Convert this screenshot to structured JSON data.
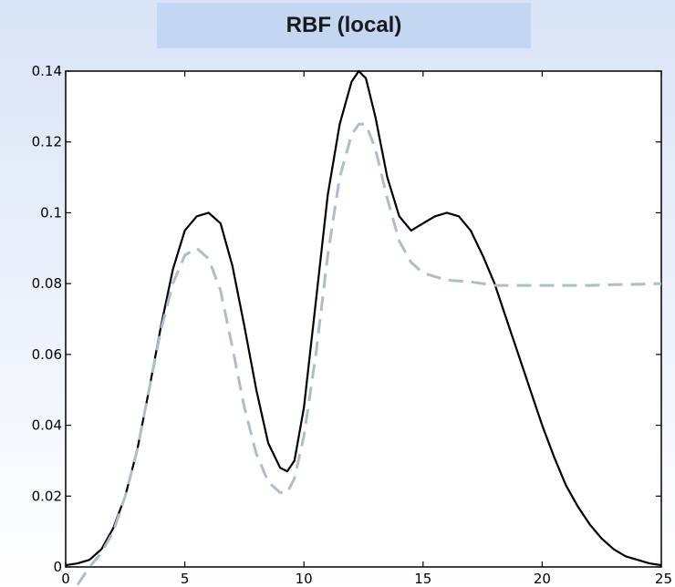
{
  "title": "RBF (local)",
  "chart_data": {
    "type": "line",
    "title": "RBF (local)",
    "xlabel": "",
    "ylabel": "",
    "xlim": [
      0,
      25
    ],
    "ylim": [
      0,
      0.14
    ],
    "grid": false,
    "x_ticks": [
      0,
      5,
      10,
      15,
      20,
      25
    ],
    "x_tick_labels": [
      "0",
      "5",
      "10",
      "15",
      "20",
      "25"
    ],
    "y_ticks": [
      0,
      0.02,
      0.04,
      0.06,
      0.08,
      0.1,
      0.12,
      0.14
    ],
    "y_tick_labels": [
      "0",
      "0.02",
      "0.04",
      "0.06",
      "0.08",
      "0.1",
      "0.12",
      "0.14"
    ],
    "series": [
      {
        "style": "solid",
        "color": "#000000",
        "x": [
          0,
          0.5,
          1,
          1.5,
          2,
          2.5,
          3,
          3.5,
          4,
          4.5,
          5,
          5.5,
          6,
          6.5,
          7,
          7.5,
          8,
          8.5,
          9,
          9.3,
          9.6,
          10,
          10.5,
          11,
          11.5,
          12,
          12.3,
          12.6,
          13,
          13.5,
          14,
          14.5,
          15,
          15.5,
          16,
          16.5,
          17,
          17.5,
          18,
          18.5,
          19,
          19.5,
          20,
          20.5,
          21,
          21.5,
          22,
          22.5,
          23,
          23.5,
          24,
          24.5,
          25
        ],
        "y": [
          0.0005,
          0.001,
          0.002,
          0.005,
          0.011,
          0.02,
          0.033,
          0.05,
          0.068,
          0.084,
          0.095,
          0.099,
          0.1,
          0.097,
          0.085,
          0.068,
          0.05,
          0.035,
          0.028,
          0.027,
          0.03,
          0.045,
          0.075,
          0.105,
          0.125,
          0.137,
          0.14,
          0.138,
          0.127,
          0.11,
          0.099,
          0.095,
          0.097,
          0.099,
          0.1,
          0.099,
          0.095,
          0.088,
          0.08,
          0.07,
          0.06,
          0.05,
          0.04,
          0.031,
          0.023,
          0.017,
          0.012,
          0.008,
          0.005,
          0.003,
          0.002,
          0.001,
          0.0005
        ]
      },
      {
        "style": "dashed",
        "color": "#a9c0cc",
        "x": [
          0.5,
          1,
          1.5,
          2,
          2.5,
          3,
          3.5,
          4,
          4.5,
          5,
          5.5,
          6,
          6.5,
          7,
          7.5,
          8,
          8.5,
          9,
          9.3,
          9.6,
          10,
          10.5,
          11,
          11.5,
          12,
          12.3,
          12.6,
          13,
          13.5,
          14,
          14.5,
          15,
          16,
          17,
          18,
          19,
          20,
          21,
          22,
          23,
          24,
          25
        ],
        "y": [
          -0.005,
          0.0,
          0.004,
          0.01,
          0.02,
          0.033,
          0.05,
          0.067,
          0.08,
          0.088,
          0.09,
          0.087,
          0.078,
          0.062,
          0.045,
          0.032,
          0.024,
          0.021,
          0.021,
          0.025,
          0.037,
          0.06,
          0.088,
          0.11,
          0.122,
          0.125,
          0.125,
          0.118,
          0.104,
          0.092,
          0.086,
          0.083,
          0.081,
          0.0805,
          0.0795,
          0.0795,
          0.0795,
          0.0795,
          0.0795,
          0.0797,
          0.0798,
          0.08
        ]
      }
    ]
  }
}
